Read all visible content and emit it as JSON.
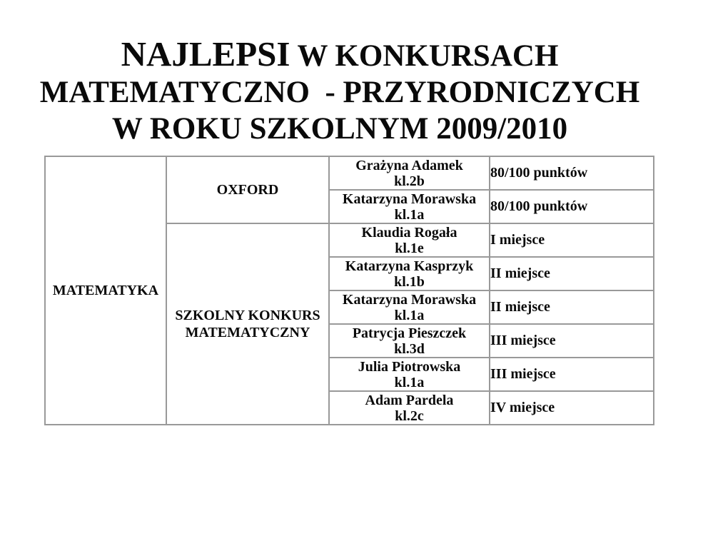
{
  "title": {
    "line1_word1": "NAJLEPSI",
    "line1_rest": " W KONKURSACH",
    "line2": "MATEMATYCZNO  - PRZYRODNICZYCH",
    "line3": "W ROKU SZKOLNYM 2009/2010"
  },
  "table": {
    "subject": "MATEMATYKA",
    "competitions": [
      {
        "name": "OXFORD",
        "entries": [
          {
            "student": "Grażyna Adamek",
            "class": "kl.2b",
            "result": "80/100 punktów"
          },
          {
            "student": "Katarzyna Morawska",
            "class": "kl.1a",
            "result": "80/100 punktów"
          }
        ]
      },
      {
        "name": "SZKOLNY KONKURS MATEMATYCZNY",
        "entries": [
          {
            "student": "Klaudia Rogała",
            "class": "kl.1e",
            "result": "I miejsce"
          },
          {
            "student": "Katarzyna Kasprzyk",
            "class": "kl.1b",
            "result": "II miejsce"
          },
          {
            "student": "Katarzyna Morawska",
            "class": "kl.1a",
            "result": "II miejsce"
          },
          {
            "student": "Patrycja Pieszczek",
            "class": "kl.3d",
            "result": "III miejsce"
          },
          {
            "student": "Julia Piotrowska",
            "class": "kl.1a",
            "result": "III miejsce"
          },
          {
            "student": "Adam Pardela",
            "class": "kl.2c",
            "result": "IV miejsce"
          }
        ]
      }
    ]
  },
  "colors": {
    "text": "#0a0a0a",
    "border": "#999999",
    "background": "#ffffff"
  }
}
